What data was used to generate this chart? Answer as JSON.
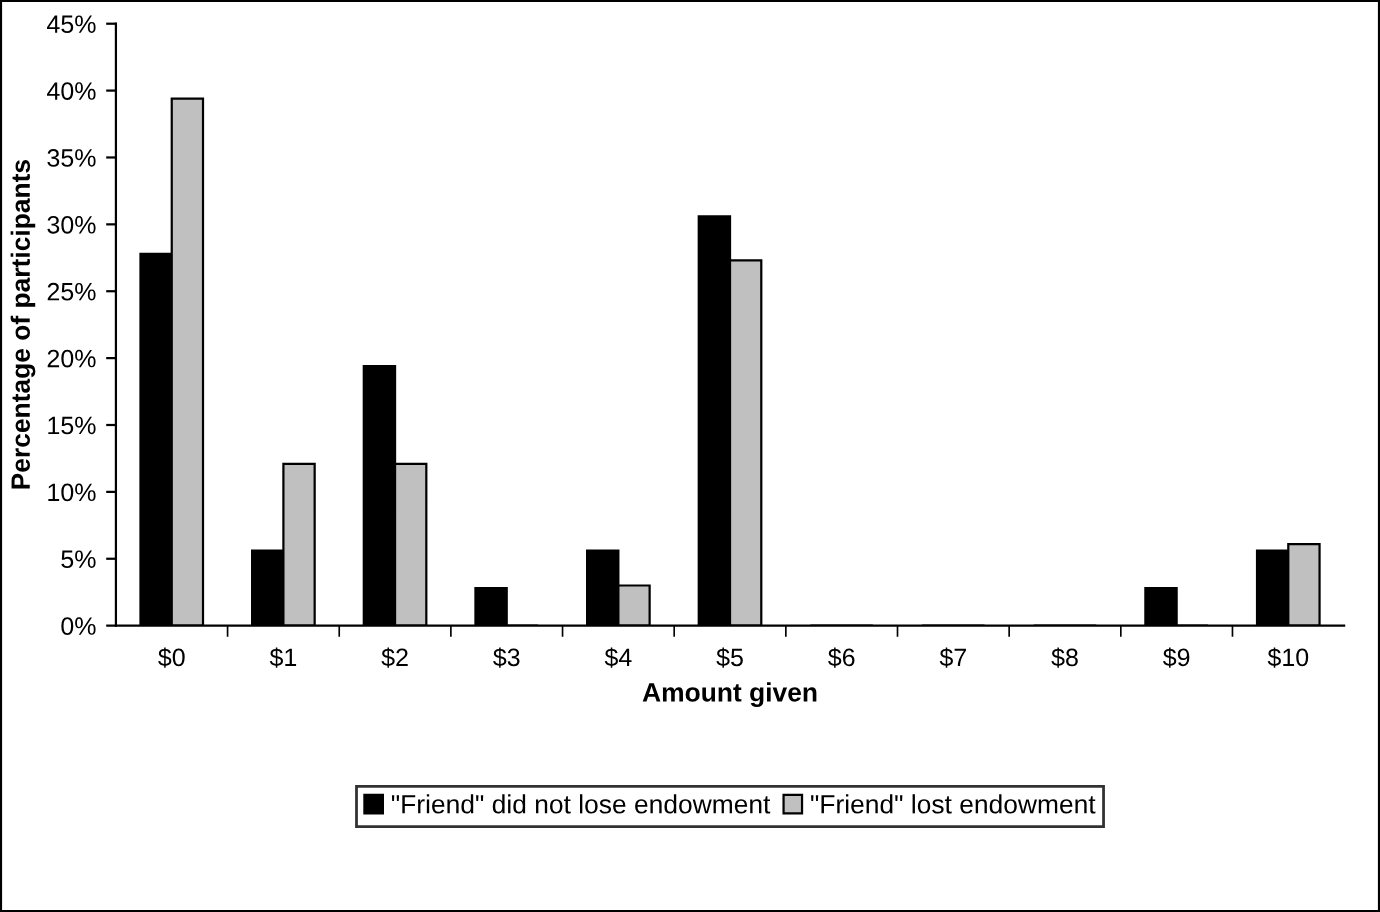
{
  "chart_data": {
    "type": "bar",
    "xlabel": "Amount given",
    "ylabel": "Percentage of participants",
    "categories": [
      "$0",
      "$1",
      "$2",
      "$3",
      "$4",
      "$5",
      "$6",
      "$7",
      "$8",
      "$9",
      "$10"
    ],
    "series": [
      {
        "name": "\"Friend\" did not lose endowment",
        "color": "#000000",
        "values": [
          27.8,
          5.6,
          19.4,
          2.8,
          5.6,
          30.6,
          0,
          0,
          0,
          2.8,
          5.6
        ]
      },
      {
        "name": "\"Friend\" lost endowment",
        "color": "#c0c0c0",
        "values": [
          39.4,
          12.1,
          12.1,
          0,
          3.0,
          27.3,
          0,
          0,
          0,
          0,
          6.1
        ]
      }
    ],
    "ylim": [
      0,
      45
    ],
    "yticks": [
      {
        "value": 0,
        "label": "0%"
      },
      {
        "value": 5,
        "label": "5%"
      },
      {
        "value": 10,
        "label": "10%"
      },
      {
        "value": 15,
        "label": "15%"
      },
      {
        "value": 20,
        "label": "20%"
      },
      {
        "value": 25,
        "label": "25%"
      },
      {
        "value": 30,
        "label": "30%"
      },
      {
        "value": 35,
        "label": "35%"
      },
      {
        "value": 40,
        "label": "40%"
      },
      {
        "value": 45,
        "label": "45%"
      }
    ],
    "grid": false,
    "legend": "bottom"
  }
}
